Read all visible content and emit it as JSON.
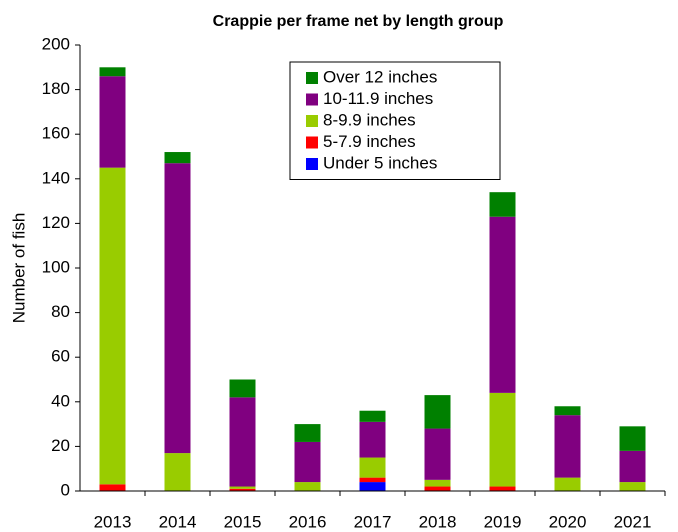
{
  "chart_data": {
    "type": "stacked_bar",
    "title": "Crappie per frame net by length group",
    "y_label": "Number of fish",
    "categories": [
      "2013",
      "2014",
      "2015",
      "2016",
      "2017",
      "2018",
      "2019",
      "2020",
      "2021"
    ],
    "series": [
      {
        "name": "Under 5 inches",
        "color": "#0000ff",
        "values": [
          0,
          0,
          0,
          0,
          4,
          0,
          0,
          0,
          0
        ]
      },
      {
        "name": "5-7.9 inches",
        "color": "#ff0000",
        "values": [
          3,
          0,
          1,
          0,
          2,
          2,
          2,
          0,
          0
        ]
      },
      {
        "name": "8-9.9 inches",
        "color": "#99cc00",
        "values": [
          142,
          17,
          1,
          4,
          9,
          3,
          42,
          6,
          4
        ]
      },
      {
        "name": "10-11.9 inches",
        "color": "#800080",
        "values": [
          41,
          130,
          40,
          18,
          16,
          23,
          79,
          28,
          14
        ]
      },
      {
        "name": "Over 12 inches",
        "color": "#008000",
        "values": [
          4,
          5,
          8,
          8,
          5,
          15,
          11,
          4,
          11
        ]
      }
    ],
    "ylim": [
      0,
      200
    ],
    "yticks": [
      0,
      20,
      40,
      60,
      80,
      100,
      120,
      140,
      160,
      180,
      200
    ],
    "grid": false,
    "legend_position": "top-center"
  }
}
